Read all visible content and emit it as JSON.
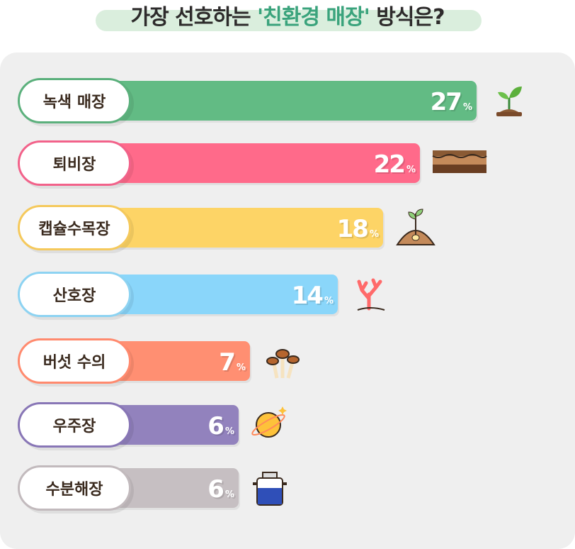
{
  "chart_data": {
    "type": "bar",
    "orientation": "horizontal",
    "title_parts": [
      "가장 선호하는 ",
      "'친환경 매장'",
      " 방식은?"
    ],
    "unit": "%",
    "categories": [
      "녹색 매장",
      "퇴비장",
      "캡슐수목장",
      "산호장",
      "버섯 수의",
      "우주장",
      "수분해장"
    ],
    "values": [
      27,
      22,
      18,
      14,
      7,
      6,
      6
    ],
    "colors": [
      "#62bb84",
      "#ff6a8a",
      "#fdd466",
      "#8ad6fa",
      "#ff8f72",
      "#9282bd",
      "#c6bfc2"
    ],
    "border_colors": [
      "#5bb07c",
      "#f2628a",
      "#f5c95c",
      "#8dd3f2",
      "#ff8a6e",
      "#8876b6",
      "#c2babd"
    ],
    "icons": [
      "sprout-icon",
      "soil-layers-icon",
      "capsule-tree-icon",
      "coral-icon",
      "mushroom-icon",
      "planet-icon",
      "water-tank-icon"
    ]
  }
}
